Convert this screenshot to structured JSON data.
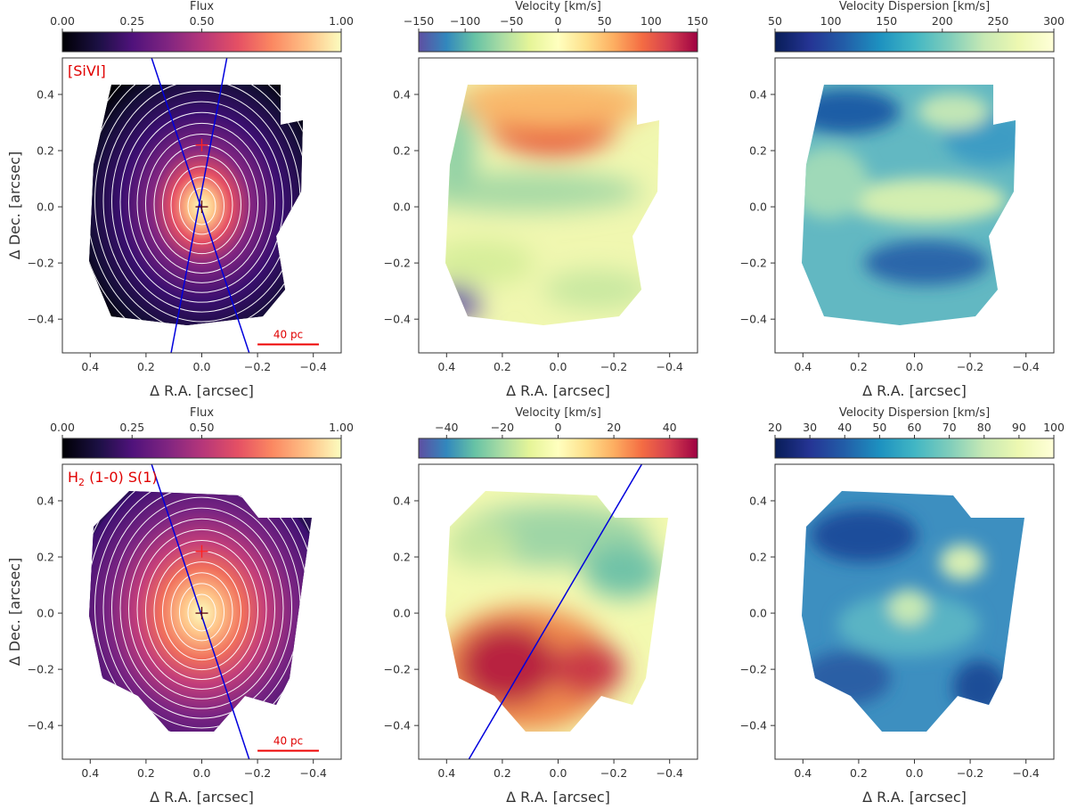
{
  "chart_data": [
    {
      "type": "heatmap",
      "panel": "top-left",
      "title": "[SiVI]",
      "xlabel": "Δ R.A. [arcsec]",
      "ylabel": "Δ Dec. [arcsec]",
      "xlim": [
        0.5,
        -0.5
      ],
      "ylim": [
        -0.52,
        0.53
      ],
      "xticks": [
        0.4,
        0.2,
        0.0,
        -0.2,
        -0.4
      ],
      "yticks": [
        0.4,
        0.2,
        0.0,
        -0.2,
        -0.4
      ],
      "colorbar": {
        "label": "Flux",
        "cmap": "magma",
        "min": 0.0,
        "max": 1.0,
        "ticks": [
          0.0,
          0.25,
          0.5,
          1.0
        ],
        "tick_labels": [
          "0.00",
          "0.25",
          "0.50",
          "1.00"
        ]
      },
      "scale_bar": "40 pc",
      "markers": [
        {
          "x": 0.0,
          "y": 0.22
        },
        {
          "x": 0.0,
          "y": 0.0
        }
      ],
      "lines": [
        [
          0.18,
          0.53,
          -0.17,
          -0.52
        ],
        [
          -0.09,
          0.53,
          0.11,
          -0.52
        ]
      ],
      "contours": true
    },
    {
      "type": "heatmap",
      "panel": "top-middle",
      "xlabel": "Δ R.A. [arcsec]",
      "ylabel": "",
      "xlim": [
        0.5,
        -0.5
      ],
      "ylim": [
        -0.52,
        0.53
      ],
      "xticks": [
        0.4,
        0.2,
        0.0,
        -0.2,
        -0.4
      ],
      "yticks": [
        0.4,
        0.2,
        0.0,
        -0.2,
        -0.4
      ],
      "colorbar": {
        "label": "Velocity [km/s]",
        "cmap": "Spectral_r",
        "min": -150,
        "max": 150,
        "ticks": [
          -150,
          -100,
          -50,
          0,
          50,
          100,
          150
        ],
        "tick_labels": [
          "−150",
          "−100",
          "−50",
          "0",
          "50",
          "100",
          "150"
        ]
      }
    },
    {
      "type": "heatmap",
      "panel": "top-right",
      "xlabel": "Δ R.A. [arcsec]",
      "ylabel": "",
      "xlim": [
        0.5,
        -0.5
      ],
      "ylim": [
        -0.52,
        0.53
      ],
      "xticks": [
        0.4,
        0.2,
        0.0,
        -0.2,
        -0.4
      ],
      "yticks": [
        0.4,
        0.2,
        0.0,
        -0.2,
        -0.4
      ],
      "colorbar": {
        "label": "Velocity Dispersion [km/s]",
        "cmap": "YlGnBu_r",
        "min": 50,
        "max": 300,
        "ticks": [
          50,
          100,
          150,
          200,
          250,
          300
        ],
        "tick_labels": [
          "50",
          "100",
          "150",
          "200",
          "250",
          "300"
        ]
      }
    },
    {
      "type": "heatmap",
      "panel": "bottom-left",
      "title": "H2 (1-0) S(1)",
      "xlabel": "Δ R.A. [arcsec]",
      "ylabel": "Δ Dec. [arcsec]",
      "xlim": [
        0.5,
        -0.5
      ],
      "ylim": [
        -0.52,
        0.53
      ],
      "xticks": [
        0.4,
        0.2,
        0.0,
        -0.2,
        -0.4
      ],
      "yticks": [
        0.4,
        0.2,
        0.0,
        -0.2,
        -0.4
      ],
      "colorbar": {
        "label": "Flux",
        "cmap": "magma",
        "min": 0.0,
        "max": 1.0,
        "ticks": [
          0.0,
          0.25,
          0.5,
          1.0
        ],
        "tick_labels": [
          "0.00",
          "0.25",
          "0.50",
          "1.00"
        ]
      },
      "scale_bar": "40 pc",
      "markers": [
        {
          "x": 0.0,
          "y": 0.22
        },
        {
          "x": 0.0,
          "y": 0.0
        }
      ],
      "lines": [
        [
          0.18,
          0.53,
          -0.17,
          -0.52
        ]
      ],
      "contours": true
    },
    {
      "type": "heatmap",
      "panel": "bottom-middle",
      "xlabel": "Δ R.A. [arcsec]",
      "ylabel": "",
      "xlim": [
        0.5,
        -0.5
      ],
      "ylim": [
        -0.52,
        0.53
      ],
      "xticks": [
        0.4,
        0.2,
        0.0,
        -0.2,
        -0.4
      ],
      "yticks": [
        0.4,
        0.2,
        0.0,
        -0.2,
        -0.4
      ],
      "colorbar": {
        "label": "Velocity [km/s]",
        "cmap": "Spectral_r",
        "min": -50,
        "max": 50,
        "ticks": [
          -40,
          -20,
          0,
          20,
          40
        ],
        "tick_labels": [
          "−40",
          "−20",
          "0",
          "20",
          "40"
        ]
      },
      "lines": [
        [
          0.32,
          -0.52,
          -0.3,
          0.53
        ]
      ]
    },
    {
      "type": "heatmap",
      "panel": "bottom-right",
      "xlabel": "Δ R.A. [arcsec]",
      "ylabel": "",
      "xlim": [
        0.5,
        -0.5
      ],
      "ylim": [
        -0.52,
        0.53
      ],
      "xticks": [
        0.4,
        0.2,
        0.0,
        -0.2,
        -0.4
      ],
      "yticks": [
        0.4,
        0.2,
        0.0,
        -0.2,
        -0.4
      ],
      "colorbar": {
        "label": "Velocity Dispersion [km/s]",
        "cmap": "YlGnBu_r",
        "min": 20,
        "max": 100,
        "ticks": [
          20,
          30,
          40,
          50,
          60,
          70,
          80,
          90,
          100
        ],
        "tick_labels": [
          "20",
          "30",
          "40",
          "50",
          "60",
          "70",
          "80",
          "90",
          "100"
        ]
      }
    }
  ]
}
